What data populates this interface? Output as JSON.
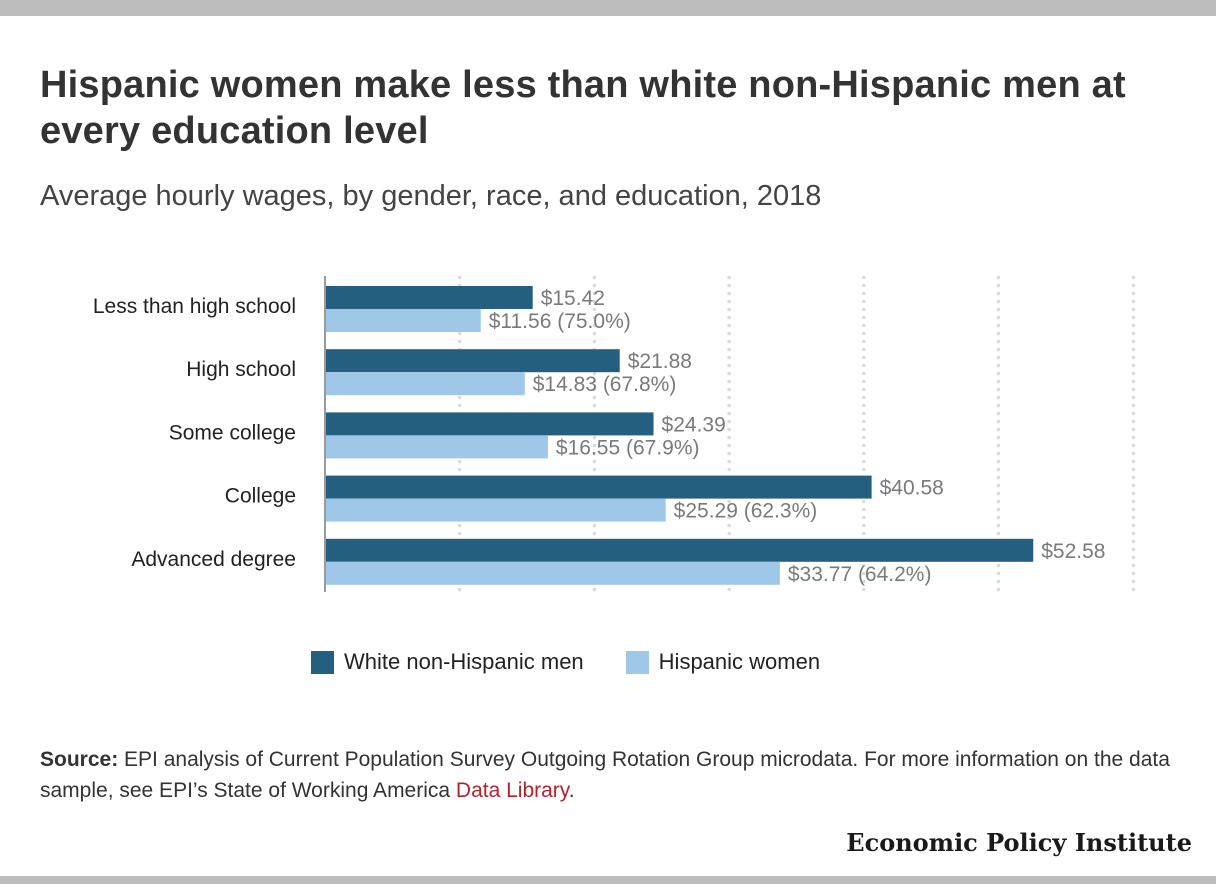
{
  "header": {
    "title": "Hispanic women make less than white non-Hispanic men at every education level",
    "subtitle": "Average hourly wages, by gender, race, and education, 2018"
  },
  "chart_data": {
    "type": "bar",
    "orientation": "horizontal",
    "categories": [
      "Less than high school",
      "High school",
      "Some college",
      "College",
      "Advanced degree"
    ],
    "series": [
      {
        "name": "White non-Hispanic men",
        "values": [
          15.42,
          21.88,
          24.39,
          40.58,
          52.58
        ],
        "labels": [
          "$15.42",
          "$21.88",
          "$24.39",
          "$40.58",
          "$52.58"
        ],
        "color": "#245f80"
      },
      {
        "name": "Hispanic women",
        "values": [
          11.56,
          14.83,
          16.55,
          25.29,
          33.77
        ],
        "labels": [
          "$11.56 (75.0%)",
          "$14.83 (67.8%)",
          "$16.55 (67.9%)",
          "$25.29 (62.3%)",
          "$33.77 (64.2%)"
        ],
        "color": "#9fc8e8"
      }
    ],
    "xlim": [
      0,
      60
    ],
    "grid": true,
    "legend_position": "bottom",
    "label_color": "#7a7a7a"
  },
  "legend": {
    "men_label": "White non-Hispanic men",
    "women_label": "Hispanic women"
  },
  "source": {
    "label": "Source:",
    "text": " EPI analysis of Current Population Survey Outgoing Rotation Group microdata. For more information on the data sample, see EPI’s State of Working America ",
    "link_text": "Data Library",
    "end": "."
  },
  "branding": {
    "name": "Economic Policy Institute"
  }
}
